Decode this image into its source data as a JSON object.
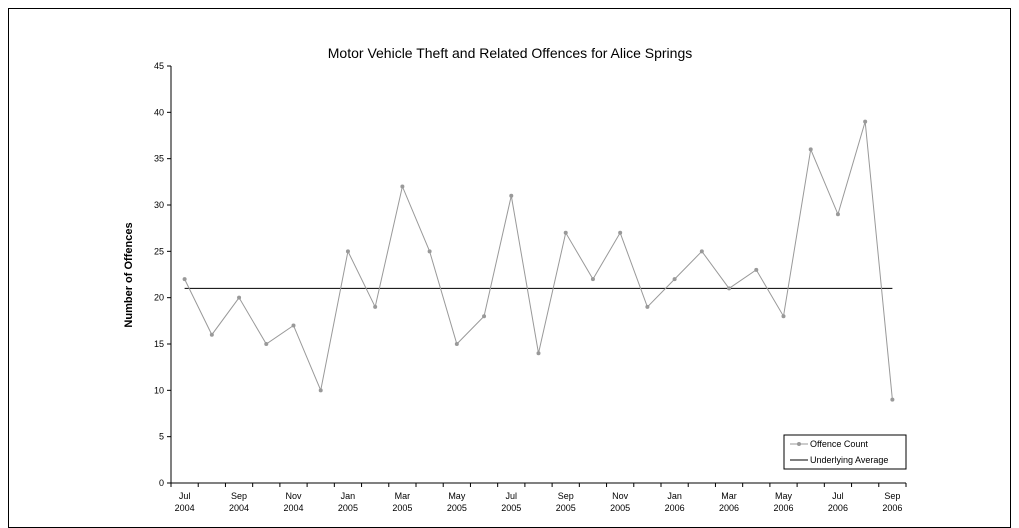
{
  "chart_data": {
    "type": "line",
    "title": "Motor Vehicle Theft and Related Offences for Alice Springs",
    "xlabel": "",
    "ylabel": "Number of Offences",
    "ylim": [
      0,
      45
    ],
    "yticks": [
      0,
      5,
      10,
      15,
      20,
      25,
      30,
      35,
      40,
      45
    ],
    "categories": [
      "Jul 2004",
      "Aug 2004",
      "Sep 2004",
      "Oct 2004",
      "Nov 2004",
      "Dec 2004",
      "Jan 2005",
      "Feb 2005",
      "Mar 2005",
      "Apr 2005",
      "May 2005",
      "Jun 2005",
      "Jul 2005",
      "Aug 2005",
      "Sep 2005",
      "Oct 2005",
      "Nov 2005",
      "Dec 2005",
      "Jan 2006",
      "Feb 2006",
      "Mar 2006",
      "Apr 2006",
      "May 2006",
      "Jun 2006",
      "Jul 2006",
      "Aug 2006",
      "Sep 2006"
    ],
    "xtick_labels": [
      {
        "month": "Jul",
        "year": "2004"
      },
      {
        "month": "Sep",
        "year": "2004"
      },
      {
        "month": "Nov",
        "year": "2004"
      },
      {
        "month": "Jan",
        "year": "2005"
      },
      {
        "month": "Mar",
        "year": "2005"
      },
      {
        "month": "May",
        "year": "2005"
      },
      {
        "month": "Jul",
        "year": "2005"
      },
      {
        "month": "Sep",
        "year": "2005"
      },
      {
        "month": "Nov",
        "year": "2005"
      },
      {
        "month": "Jan",
        "year": "2006"
      },
      {
        "month": "Mar",
        "year": "2006"
      },
      {
        "month": "May",
        "year": "2006"
      },
      {
        "month": "Jul",
        "year": "2006"
      },
      {
        "month": "Sep",
        "year": "2006"
      }
    ],
    "series": [
      {
        "name": "Offence Count",
        "color": "#999999",
        "marker": "circle",
        "values": [
          22,
          16,
          20,
          15,
          17,
          10,
          25,
          19,
          32,
          25,
          15,
          18,
          31,
          14,
          27,
          22,
          27,
          19,
          22,
          25,
          21,
          23,
          18,
          36,
          29,
          39,
          9
        ]
      },
      {
        "name": "Underlying Average",
        "color": "#000000",
        "marker": "none",
        "values": [
          21,
          21,
          21,
          21,
          21,
          21,
          21,
          21,
          21,
          21,
          21,
          21,
          21,
          21,
          21,
          21,
          21,
          21,
          21,
          21,
          21,
          21,
          21,
          21,
          21,
          21,
          21
        ]
      }
    ],
    "grid": false,
    "legend": "bottom-right"
  }
}
